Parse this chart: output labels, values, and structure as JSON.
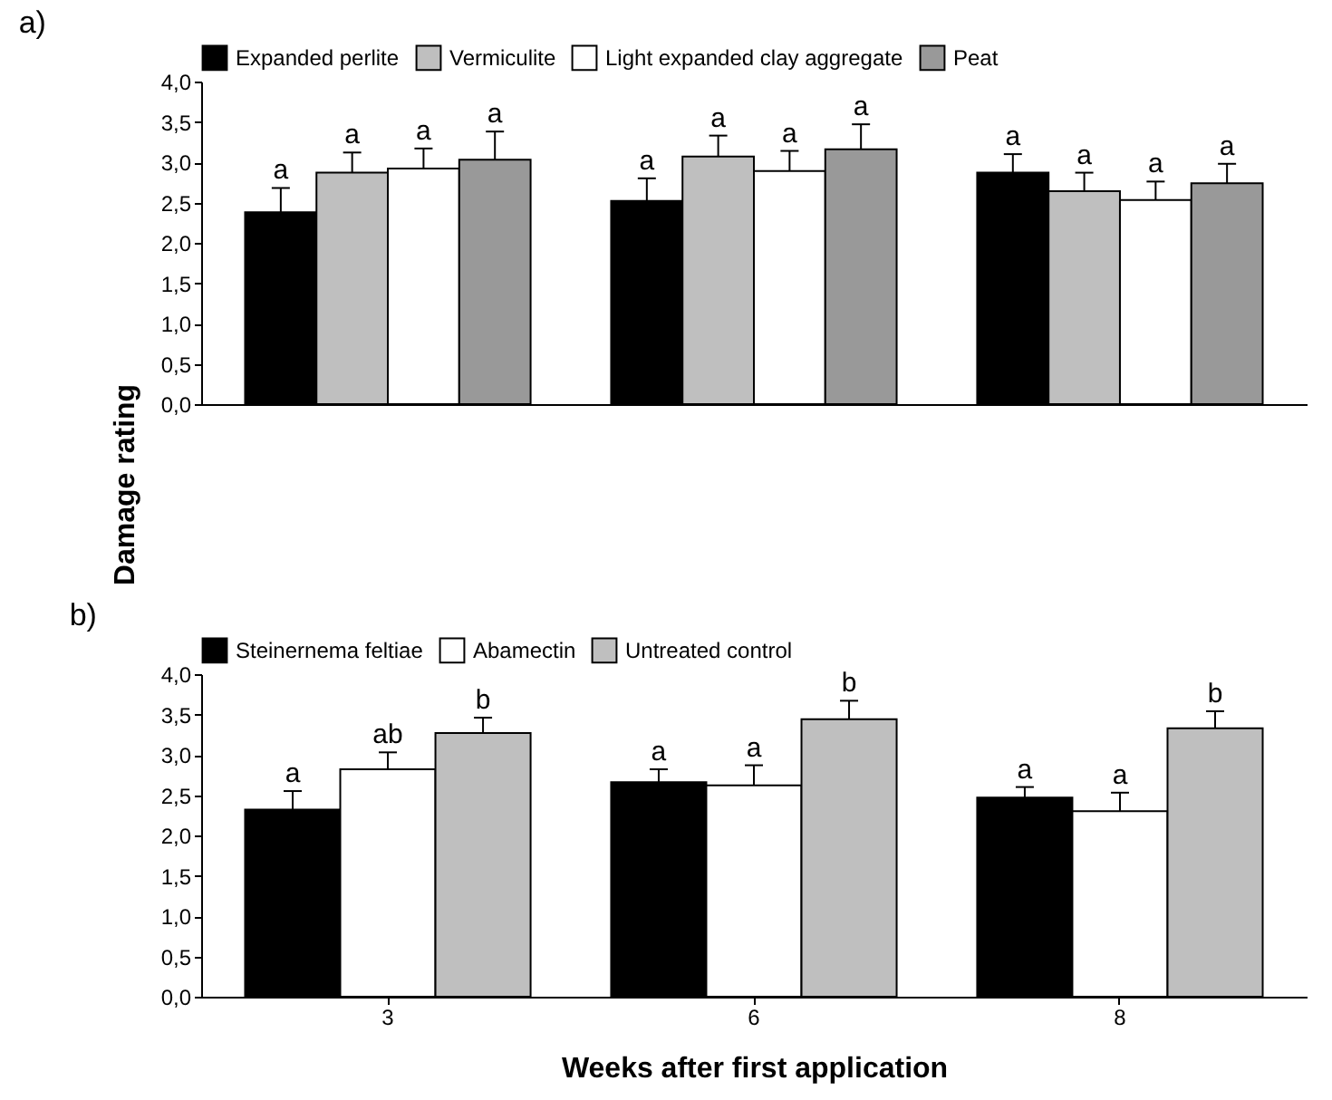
{
  "chart_data": [
    {
      "type": "bar",
      "title": "a)",
      "ylabel": "Damage rating",
      "categories": [
        "3",
        "6",
        "8"
      ],
      "tick_labels": "y",
      "legend": "top",
      "grid": false,
      "ylim": [
        0,
        4
      ],
      "yticks": [
        {
          "value": 0,
          "label": "0,0"
        },
        {
          "value": 0.5,
          "label": "0,5"
        },
        {
          "value": 1,
          "label": "1,0"
        },
        {
          "value": 1.5,
          "label": "1,5"
        },
        {
          "value": 2,
          "label": "2,0"
        },
        {
          "value": 2.5,
          "label": "2,5"
        },
        {
          "value": 3,
          "label": "3,0"
        },
        {
          "value": 3.5,
          "label": "3,5"
        },
        {
          "value": 4,
          "label": "4,0"
        }
      ],
      "series": [
        {
          "name": "Expanded perlite",
          "color": "#000000",
          "values": [
            2.38,
            2.52,
            2.87
          ],
          "errors": [
            0.3,
            0.28,
            0.23
          ],
          "value_labels": [
            "a",
            "a",
            "a"
          ]
        },
        {
          "name": "Vermiculite",
          "color": "#bfbfbf",
          "values": [
            2.87,
            3.07,
            2.64
          ],
          "errors": [
            0.25,
            0.26,
            0.23
          ],
          "value_labels": [
            "a",
            "a",
            "a"
          ]
        },
        {
          "name": "Light expanded clay aggregate",
          "color": "#ffffff",
          "values": [
            2.92,
            2.89,
            2.53
          ],
          "errors": [
            0.25,
            0.25,
            0.23
          ],
          "value_labels": [
            "a",
            "a",
            "a"
          ]
        },
        {
          "name": "Peat",
          "color": "#999999",
          "values": [
            3.03,
            3.16,
            2.74
          ],
          "errors": [
            0.35,
            0.31,
            0.24
          ],
          "value_labels": [
            "a",
            "a",
            "a"
          ]
        }
      ]
    },
    {
      "type": "bar",
      "title": "b)",
      "xlabel": "Weeks after first application",
      "categories": [
        "3",
        "6",
        "8"
      ],
      "legend": "top",
      "grid": false,
      "ylim": [
        0,
        4
      ],
      "yticks": [
        {
          "value": 0,
          "label": "0,0"
        },
        {
          "value": 0.5,
          "label": "0,5"
        },
        {
          "value": 1,
          "label": "1,0"
        },
        {
          "value": 1.5,
          "label": "1,5"
        },
        {
          "value": 2,
          "label": "2,0"
        },
        {
          "value": 2.5,
          "label": "2,5"
        },
        {
          "value": 3,
          "label": "3,0"
        },
        {
          "value": 3.5,
          "label": "3,5"
        },
        {
          "value": 4,
          "label": "4,0"
        }
      ],
      "series": [
        {
          "name": "Steinernema feltiae",
          "color": "#000000",
          "values": [
            2.32,
            2.66,
            2.47
          ],
          "errors": [
            0.23,
            0.16,
            0.13
          ],
          "value_labels": [
            "a",
            "a",
            "a"
          ]
        },
        {
          "name": "Abamectin",
          "color": "#ffffff",
          "values": [
            2.82,
            2.62,
            2.3
          ],
          "errors": [
            0.21,
            0.25,
            0.23
          ],
          "value_labels": [
            "ab",
            "a",
            "a"
          ]
        },
        {
          "name": "Untreated control",
          "color": "#bfbfbf",
          "values": [
            3.27,
            3.44,
            3.33
          ],
          "errors": [
            0.19,
            0.23,
            0.21
          ],
          "value_labels": [
            "b",
            "b",
            "b"
          ]
        }
      ]
    }
  ]
}
